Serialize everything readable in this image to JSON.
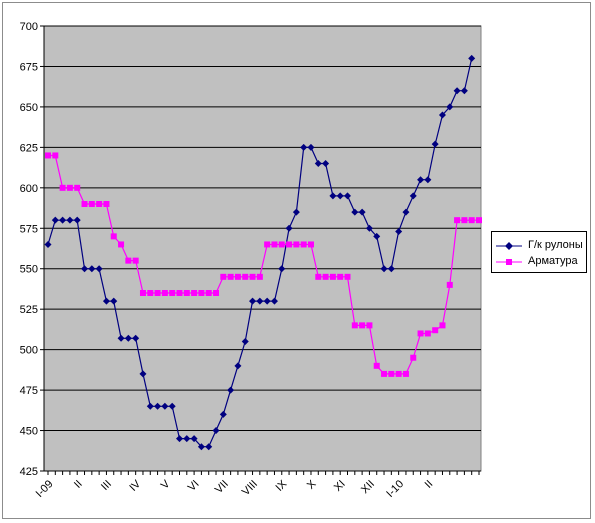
{
  "chart_data": {
    "type": "line",
    "title": "",
    "xlabel": "",
    "ylabel": "",
    "ylim": [
      425,
      700
    ],
    "yticks": [
      425,
      450,
      475,
      500,
      525,
      550,
      575,
      600,
      625,
      650,
      675,
      700
    ],
    "grid": "horizontal",
    "legend_position": "right",
    "x_tick_labels": [
      {
        "index": 0,
        "label": "I-09"
      },
      {
        "index": 4,
        "label": "II"
      },
      {
        "index": 8,
        "label": "III"
      },
      {
        "index": 12,
        "label": "IV"
      },
      {
        "index": 16,
        "label": "V"
      },
      {
        "index": 20,
        "label": "VI"
      },
      {
        "index": 24,
        "label": "VII"
      },
      {
        "index": 28,
        "label": "VIII"
      },
      {
        "index": 32,
        "label": "IX"
      },
      {
        "index": 36,
        "label": "X"
      },
      {
        "index": 40,
        "label": "XI"
      },
      {
        "index": 44,
        "label": "XII"
      },
      {
        "index": 48,
        "label": "I-10"
      },
      {
        "index": 52,
        "label": "II"
      }
    ],
    "series": [
      {
        "name": "Г/к рулоны",
        "color": "#000080",
        "marker": "diamond",
        "values": [
          565,
          580,
          580,
          580,
          580,
          550,
          550,
          550,
          530,
          530,
          507,
          507,
          507,
          485,
          465,
          465,
          465,
          465,
          445,
          445,
          445,
          440,
          440,
          450,
          460,
          475,
          490,
          505,
          530,
          530,
          530,
          530,
          550,
          575,
          585,
          625,
          625,
          615,
          615,
          595,
          595,
          595,
          585,
          585,
          575,
          570,
          550,
          550,
          573,
          585,
          595,
          605,
          605,
          627,
          645,
          650,
          660,
          660,
          680
        ]
      },
      {
        "name": "Арматура",
        "color": "#ff00ff",
        "marker": "square",
        "values": [
          620,
          620,
          600,
          600,
          600,
          590,
          590,
          590,
          590,
          570,
          565,
          555,
          555,
          535,
          535,
          535,
          535,
          535,
          535,
          535,
          535,
          535,
          535,
          535,
          545,
          545,
          545,
          545,
          545,
          545,
          565,
          565,
          565,
          565,
          565,
          565,
          565,
          545,
          545,
          545,
          545,
          545,
          515,
          515,
          515,
          490,
          485,
          485,
          485,
          485,
          495,
          510,
          510,
          512,
          515,
          540,
          580,
          580,
          580,
          580
        ]
      }
    ]
  },
  "legend": {
    "items": [
      {
        "label": "Г/к рулоны",
        "color": "#000080",
        "marker": "diamond"
      },
      {
        "label": "Арматура",
        "color": "#ff00ff",
        "marker": "square"
      }
    ]
  },
  "colors": {
    "plot_background": "#c0c0c0",
    "grid": "#000000"
  }
}
